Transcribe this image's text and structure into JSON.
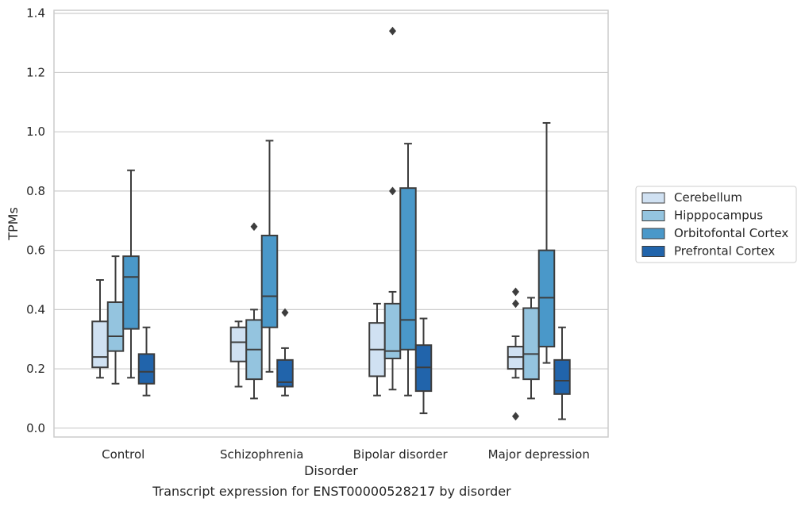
{
  "chart_data": {
    "type": "box",
    "xlabel": "Disorder",
    "ylabel": "TPMs",
    "caption": "Transcript expression for ENST00000528217 by disorder",
    "ylim": [
      -0.03,
      1.41
    ],
    "yticks": [
      "0.0",
      "0.2",
      "0.4",
      "0.6",
      "0.8",
      "1.0",
      "1.2",
      "1.4"
    ],
    "grid": true,
    "legend_placement": "right",
    "categories": [
      "Control",
      "Schizophrenia",
      "Bipolar disorder",
      "Major depression"
    ],
    "series": [
      {
        "name": "Cerebellum",
        "color": "#d0e1f2",
        "boxes": [
          {
            "whislo": 0.17,
            "q1": 0.205,
            "med": 0.24,
            "q3": 0.36,
            "whishi": 0.5,
            "fliers": []
          },
          {
            "whislo": 0.14,
            "q1": 0.225,
            "med": 0.29,
            "q3": 0.34,
            "whishi": 0.36,
            "fliers": []
          },
          {
            "whislo": 0.11,
            "q1": 0.175,
            "med": 0.265,
            "q3": 0.355,
            "whishi": 0.42,
            "fliers": []
          },
          {
            "whislo": 0.17,
            "q1": 0.2,
            "med": 0.24,
            "q3": 0.275,
            "whishi": 0.31,
            "fliers": [
              0.46,
              0.42,
              0.04
            ]
          }
        ]
      },
      {
        "name": "Hipppocampus",
        "color": "#94c4df",
        "boxes": [
          {
            "whislo": 0.15,
            "q1": 0.26,
            "med": 0.31,
            "q3": 0.425,
            "whishi": 0.58,
            "fliers": []
          },
          {
            "whislo": 0.1,
            "q1": 0.165,
            "med": 0.265,
            "q3": 0.365,
            "whishi": 0.4,
            "fliers": [
              0.68
            ]
          },
          {
            "whislo": 0.13,
            "q1": 0.235,
            "med": 0.26,
            "q3": 0.42,
            "whishi": 0.46,
            "fliers": [
              0.8,
              1.34
            ]
          },
          {
            "whislo": 0.1,
            "q1": 0.165,
            "med": 0.25,
            "q3": 0.405,
            "whishi": 0.44,
            "fliers": []
          }
        ]
      },
      {
        "name": "Orbitofontal Cortex",
        "color": "#4a98c9",
        "boxes": [
          {
            "whislo": 0.17,
            "q1": 0.335,
            "med": 0.51,
            "q3": 0.58,
            "whishi": 0.87,
            "fliers": []
          },
          {
            "whislo": 0.19,
            "q1": 0.34,
            "med": 0.445,
            "q3": 0.65,
            "whishi": 0.97,
            "fliers": []
          },
          {
            "whislo": 0.11,
            "q1": 0.265,
            "med": 0.365,
            "q3": 0.81,
            "whishi": 0.96,
            "fliers": []
          },
          {
            "whislo": 0.22,
            "q1": 0.275,
            "med": 0.44,
            "q3": 0.6,
            "whishi": 1.03,
            "fliers": []
          }
        ]
      },
      {
        "name": "Prefrontal Cortex",
        "color": "#2164ab",
        "boxes": [
          {
            "whislo": 0.11,
            "q1": 0.15,
            "med": 0.19,
            "q3": 0.25,
            "whishi": 0.34,
            "fliers": []
          },
          {
            "whislo": 0.11,
            "q1": 0.14,
            "med": 0.155,
            "q3": 0.23,
            "whishi": 0.27,
            "fliers": [
              0.39
            ]
          },
          {
            "whislo": 0.05,
            "q1": 0.125,
            "med": 0.205,
            "q3": 0.28,
            "whishi": 0.37,
            "fliers": []
          },
          {
            "whislo": 0.03,
            "q1": 0.115,
            "med": 0.16,
            "q3": 0.23,
            "whishi": 0.34,
            "fliers": []
          }
        ]
      }
    ]
  }
}
